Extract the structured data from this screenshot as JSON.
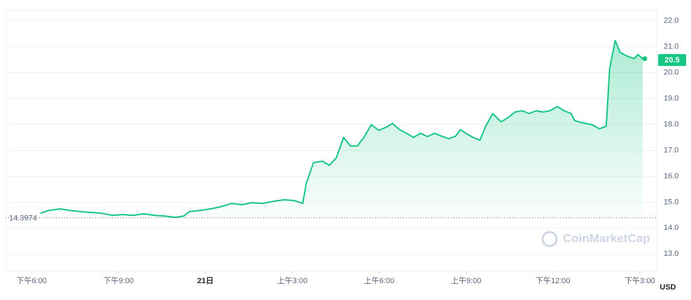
{
  "chart_data": {
    "type": "line",
    "x": [
      0.31,
      0.6,
      0.97,
      1.33,
      1.69,
      2.06,
      2.42,
      2.78,
      3.15,
      3.51,
      3.87,
      4.23,
      4.6,
      4.96,
      5.25,
      5.44,
      5.81,
      6.17,
      6.53,
      6.9,
      7.26,
      7.62,
      7.98,
      8.35,
      8.71,
      9.07,
      9.36,
      9.48,
      9.73,
      10.04,
      10.28,
      10.52,
      10.77,
      11.01,
      11.25,
      11.49,
      11.73,
      11.98,
      12.22,
      12.46,
      12.7,
      12.94,
      13.19,
      13.43,
      13.67,
      13.91,
      14.15,
      14.4,
      14.64,
      14.81,
      14.99,
      15.24,
      15.48,
      15.68,
      15.92,
      16.21,
      16.45,
      16.69,
      16.94,
      17.18,
      17.42,
      17.66,
      17.9,
      18.15,
      18.39,
      18.63,
      18.75,
      18.99,
      19.35,
      19.6,
      19.84,
      19.96,
      20.15,
      20.32,
      20.56,
      20.81,
      20.93,
      21.1
    ],
    "values": [
      14.57,
      14.68,
      14.74,
      14.68,
      14.63,
      14.6,
      14.57,
      14.49,
      14.52,
      14.49,
      14.55,
      14.49,
      14.46,
      14.41,
      14.46,
      14.63,
      14.68,
      14.74,
      14.82,
      14.95,
      14.9,
      14.98,
      14.95,
      15.03,
      15.09,
      15.06,
      14.95,
      15.71,
      16.52,
      16.58,
      16.42,
      16.71,
      17.5,
      17.17,
      17.17,
      17.53,
      17.99,
      17.77,
      17.88,
      18.04,
      17.8,
      17.66,
      17.5,
      17.66,
      17.53,
      17.66,
      17.55,
      17.45,
      17.55,
      17.8,
      17.66,
      17.5,
      17.39,
      17.93,
      18.42,
      18.1,
      18.26,
      18.48,
      18.53,
      18.42,
      18.53,
      18.48,
      18.53,
      18.69,
      18.53,
      18.42,
      18.15,
      18.07,
      17.99,
      17.83,
      17.93,
      20.16,
      21.24,
      20.78,
      20.64,
      20.54,
      20.7,
      20.54
    ],
    "color": "#16c784",
    "xlim": [
      -0.9,
      21.1
    ],
    "xticks": [
      {
        "value": 0,
        "label": "下午6:00"
      },
      {
        "value": 3,
        "label": "下午9:00"
      },
      {
        "value": 6,
        "label": "21日"
      },
      {
        "value": 9,
        "label": "上午3:00"
      },
      {
        "value": 12,
        "label": "上午6:00"
      },
      {
        "value": 15,
        "label": "上午9:00"
      },
      {
        "value": 18,
        "label": "下午12:00"
      },
      {
        "value": 21,
        "label": "下午3:00"
      }
    ],
    "ylim": [
      12.6,
      22.4
    ],
    "yticks": [
      {
        "value": 13,
        "label": "13.0"
      },
      {
        "value": 14,
        "label": "14.0"
      },
      {
        "value": 15,
        "label": "15.0"
      },
      {
        "value": 16,
        "label": "16.0"
      },
      {
        "value": 17,
        "label": "17.0"
      },
      {
        "value": 18,
        "label": "18.0"
      },
      {
        "value": 19,
        "label": "19.0"
      },
      {
        "value": 20,
        "label": "20.0"
      },
      {
        "value": 21,
        "label": "21.0"
      },
      {
        "value": 22,
        "label": "22.0"
      }
    ],
    "y_axis_label": "USD",
    "reference_price": 14.3974,
    "current_price": 20.5,
    "watermark": "CoinMarketCap",
    "grid": true
  }
}
